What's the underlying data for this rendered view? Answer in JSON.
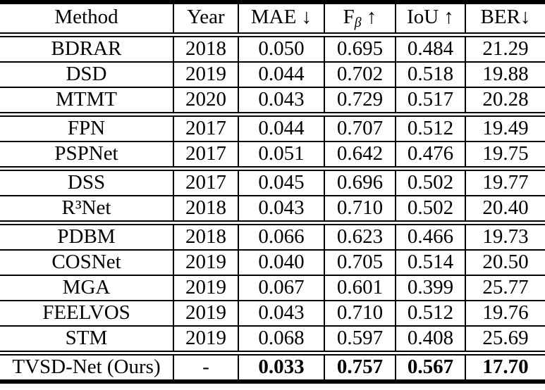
{
  "table": {
    "columns": [
      {
        "key": "method",
        "text": "Method",
        "sub": "",
        "suffix": ""
      },
      {
        "key": "year",
        "text": "Year",
        "sub": "",
        "suffix": ""
      },
      {
        "key": "mae",
        "text": "MAE",
        "sub": "",
        "suffix": " ↓"
      },
      {
        "key": "f-beta",
        "text": "F",
        "sub": "β",
        "suffix": " ↑"
      },
      {
        "key": "iou",
        "text": "IoU",
        "sub": "",
        "suffix": " ↑"
      },
      {
        "key": "ber",
        "text": "BER",
        "sub": "",
        "suffix": "↓"
      }
    ],
    "sections": [
      {
        "rows": [
          {
            "cells": [
              "BDRAR",
              "2018",
              "0.050",
              "0.695",
              "0.484",
              "21.29"
            ],
            "bold_values": false
          },
          {
            "cells": [
              "DSD",
              "2019",
              "0.044",
              "0.702",
              "0.518",
              "19.88"
            ],
            "bold_values": false
          },
          {
            "cells": [
              "MTMT",
              "2020",
              "0.043",
              "0.729",
              "0.517",
              "20.28"
            ],
            "bold_values": false
          }
        ]
      },
      {
        "rows": [
          {
            "cells": [
              "FPN",
              "2017",
              "0.044",
              "0.707",
              "0.512",
              "19.49"
            ],
            "bold_values": false
          },
          {
            "cells": [
              "PSPNet",
              "2017",
              "0.051",
              "0.642",
              "0.476",
              "19.75"
            ],
            "bold_values": false
          }
        ]
      },
      {
        "rows": [
          {
            "cells": [
              "DSS",
              "2017",
              "0.045",
              "0.696",
              "0.502",
              "19.77"
            ],
            "bold_values": false
          },
          {
            "cells": [
              "R³Net",
              "2018",
              "0.043",
              "0.710",
              "0.502",
              "20.40"
            ],
            "bold_values": false
          }
        ]
      },
      {
        "rows": [
          {
            "cells": [
              "PDBM",
              "2018",
              "0.066",
              "0.623",
              "0.466",
              "19.73"
            ],
            "bold_values": false
          },
          {
            "cells": [
              "COSNet",
              "2019",
              "0.040",
              "0.705",
              "0.514",
              "20.50"
            ],
            "bold_values": false
          },
          {
            "cells": [
              "MGA",
              "2019",
              "0.067",
              "0.601",
              "0.399",
              "25.77"
            ],
            "bold_values": false
          },
          {
            "cells": [
              "FEELVOS",
              "2019",
              "0.043",
              "0.710",
              "0.512",
              "19.76"
            ],
            "bold_values": false
          },
          {
            "cells": [
              "STM",
              "2019",
              "0.068",
              "0.597",
              "0.408",
              "25.69"
            ],
            "bold_values": false
          }
        ]
      },
      {
        "rows": [
          {
            "cells": [
              "TVSD-Net (Ours)",
              "-",
              "0.033",
              "0.757",
              "0.567",
              "17.70"
            ],
            "bold_values": true
          }
        ]
      }
    ]
  }
}
